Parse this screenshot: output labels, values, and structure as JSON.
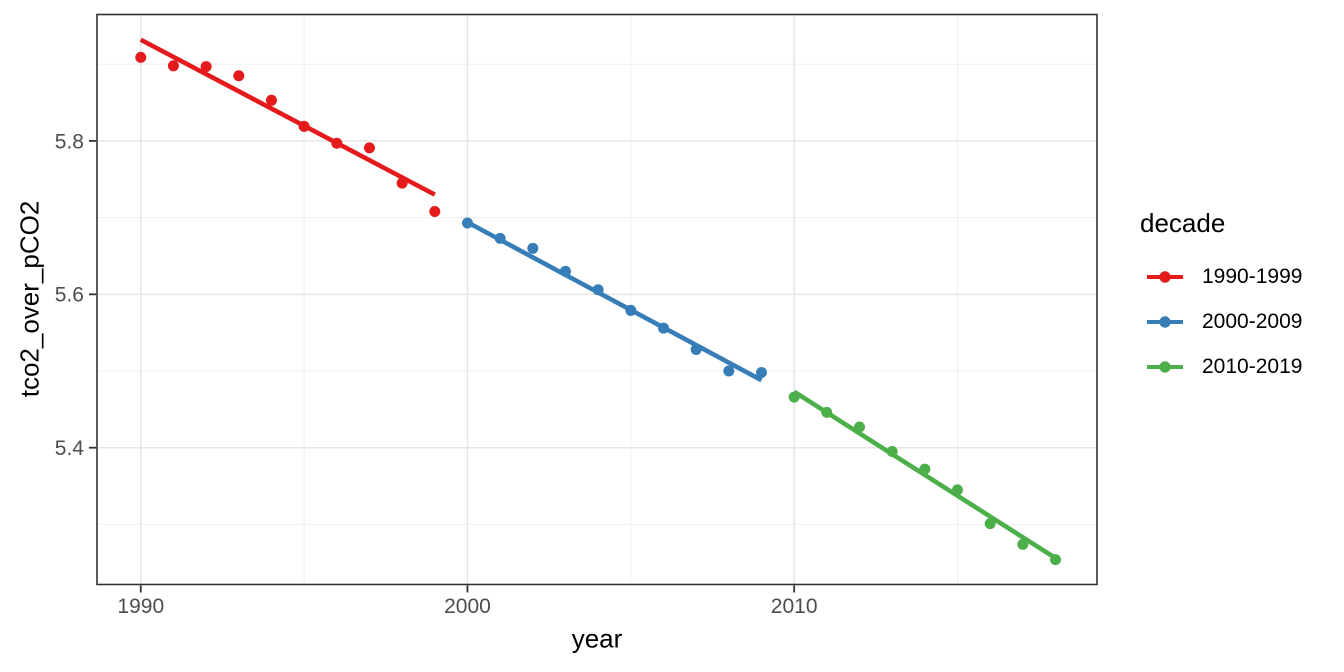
{
  "chart_data": {
    "type": "scatter",
    "title": "",
    "xlabel": "year",
    "ylabel": "tco2_over_pCO2",
    "legend_title": "decade",
    "legend_position": "right",
    "grid": true,
    "panel_border_color": "#333333",
    "major_grid_color": "#E6E6E6",
    "minor_grid_color": "#EFEFEF",
    "tick_color": "#333333",
    "tick_label_color": "#4D4D4D",
    "x_domain": [
      1988.66,
      2019.27
    ],
    "y_domain": [
      5.2216,
      5.9649
    ],
    "x_major_ticks": [
      {
        "value": 1990,
        "label": "1990"
      },
      {
        "value": 2000,
        "label": "2000"
      },
      {
        "value": 2010,
        "label": "2010"
      }
    ],
    "x_minor_ticks": [
      1995,
      2005,
      2015
    ],
    "y_major_ticks": [
      {
        "value": 5.8,
        "label": "5.8"
      },
      {
        "value": 5.6,
        "label": "5.6"
      },
      {
        "value": 5.4,
        "label": "5.4"
      }
    ],
    "y_minor_ticks": [
      5.9,
      5.7,
      5.5,
      5.3
    ],
    "series": [
      {
        "name": "1990-1999",
        "color": "#E41A1C",
        "x": [
          1990,
          1991,
          1992,
          1993,
          1994,
          1995,
          1996,
          1997,
          1998,
          1999
        ],
        "y": [
          5.909,
          5.898,
          5.897,
          5.885,
          5.853,
          5.819,
          5.797,
          5.791,
          5.745,
          5.708
        ],
        "trend": {
          "x": [
            1990,
            1999
          ],
          "y": [
            5.932,
            5.73
          ]
        }
      },
      {
        "name": "2000-2009",
        "color": "#377EB8",
        "x": [
          2000,
          2001,
          2002,
          2003,
          2004,
          2005,
          2006,
          2007,
          2008,
          2009
        ],
        "y": [
          5.693,
          5.673,
          5.66,
          5.63,
          5.606,
          5.579,
          5.556,
          5.528,
          5.5,
          5.498
        ],
        "trend": {
          "x": [
            2000,
            2009
          ],
          "y": [
            5.694,
            5.488
          ]
        }
      },
      {
        "name": "2010-2019",
        "color": "#4DAF4A",
        "x": [
          2010,
          2011,
          2012,
          2013,
          2014,
          2015,
          2016,
          2017,
          2018
        ],
        "y": [
          5.466,
          5.446,
          5.427,
          5.395,
          5.372,
          5.345,
          5.301,
          5.274,
          5.254
        ],
        "trend": {
          "x": [
            2010,
            2018
          ],
          "y": [
            5.473,
            5.256
          ]
        }
      }
    ]
  }
}
